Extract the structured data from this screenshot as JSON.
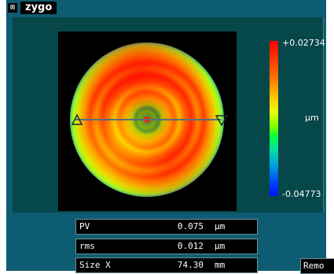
{
  "app": {
    "logo_text": "zygo",
    "close_glyph": "⊠"
  },
  "colorbar": {
    "max_label": "+0.02734",
    "unit_label": "µm",
    "min_label": "-0.04773"
  },
  "readouts": [
    {
      "name": "PV",
      "value": "0.075",
      "unit": "µm"
    },
    {
      "name": "rms",
      "value": "0.012",
      "unit": "µm"
    },
    {
      "name": "Size X",
      "value": "74.30",
      "unit": "mm"
    }
  ],
  "remote_button": {
    "label": "Remo"
  },
  "icons": {
    "close": "close-box-icon",
    "marker_left": "triangle-left-marker-icon",
    "marker_right": "triangle-down-marker-icon"
  },
  "colors": {
    "window_bg": "#0e5c72",
    "panel_bg": "#06474a",
    "profile_line": "#5a6e7a"
  }
}
